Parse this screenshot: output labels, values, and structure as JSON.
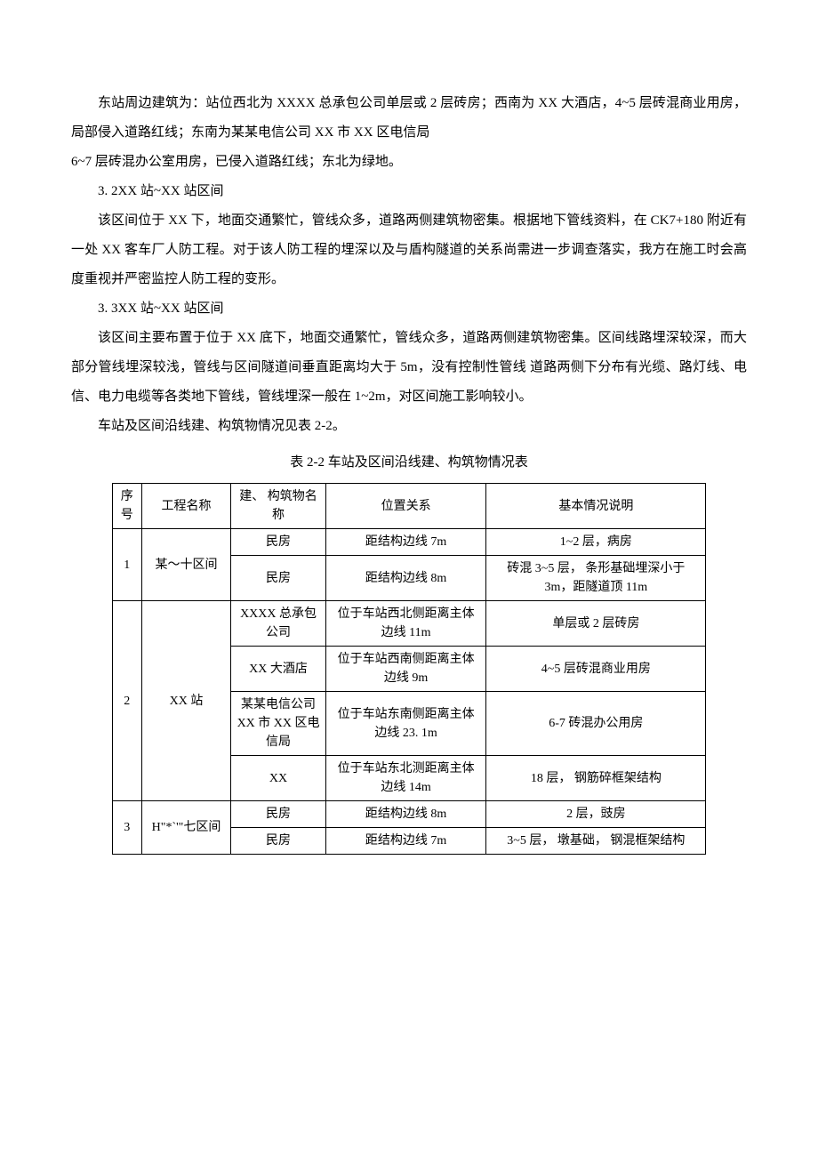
{
  "p1": "东站周边建筑为：站位西北为 XXXX 总承包公司单层或 2 层砖房；西南为 XX 大酒店，4~5 层砖混商业用房，局部侵入道路红线；东南为某某电信公司 XX 市 XX 区电信局",
  "p1b": "6~7 层砖混办公室用房，已侵入道路红线；东北为绿地。",
  "h32": "3. 2XX 站~XX 站区间",
  "p2": "该区间位于 XX 下，地面交通繁忙，管线众多，道路两侧建筑物密集。根据地下管线资料，在 CK7+180 附近有一处 XX 客车厂人防工程。对于该人防工程的埋深以及与盾构隧道的关系尚需进一步调查落实，我方在施工时会高度重视并严密监控人防工程的变形。",
  "h33": "3. 3XX 站~XX 站区间",
  "p3": "该区间主要布置于位于 XX 底下，地面交通繁忙，管线众多，道路两侧建筑物密集。区间线路埋深较深，而大部分管线埋深较浅，管线与区间隧道间垂直距离均大于 5m，没有控制性管线 道路两侧下分布有光缆、路灯线、电信、电力电缆等各类地下管线，管线埋深一般在 1~2m，对区间施工影响较小。",
  "p4": "车站及区间沿线建、构筑物情况见表 2-2。",
  "tcap": "表 2-2 车站及区间沿线建、构筑物情况表",
  "th": {
    "seq": "序号",
    "proj": "工程名称",
    "bldg": "建、 构筑物名称",
    "pos": "位置关系",
    "desc": "基本情况说明"
  },
  "r": [
    {
      "seq": "1",
      "proj": "某～十区间",
      "bldg": "民房",
      "pos": "距结构边线 7m",
      "desc": "1~2 层，病房"
    },
    {
      "bldg": "民房",
      "pos": "距结构边线 8m",
      "desc": "砖混 3~5 层， 条形基础埋深小于 3m，距隧道顶 11m"
    },
    {
      "seq": "2",
      "proj": "XX 站",
      "bldg": "XXXX 总承包公司",
      "pos": "位于车站西北侧距离主体边线 11m",
      "desc": "单层或 2 层砖房"
    },
    {
      "bldg": "XX 大酒店",
      "pos": "位于车站西南侧距离主体边线 9m",
      "desc": "4~5 层砖混商业用房"
    },
    {
      "bldg": "某某电信公司 XX 市 XX 区电信局",
      "pos": "位于车站东南侧距离主体边线 23. 1m",
      "desc": "6-7 砖混办公用房"
    },
    {
      "bldg": "XX",
      "pos": "位于车站东北测距离主体边线 14m",
      "desc": "18 层， 钢筋碎框架结构"
    },
    {
      "seq": "3",
      "proj": "H\"*`'\"七区间",
      "bldg": "民房",
      "pos": "距结构边线 8m",
      "desc": "2 层，豉房"
    },
    {
      "bldg": "民房",
      "pos": "距结构边线 7m",
      "desc": "3~5 层， 墩基础， 钢混框架结构"
    }
  ]
}
